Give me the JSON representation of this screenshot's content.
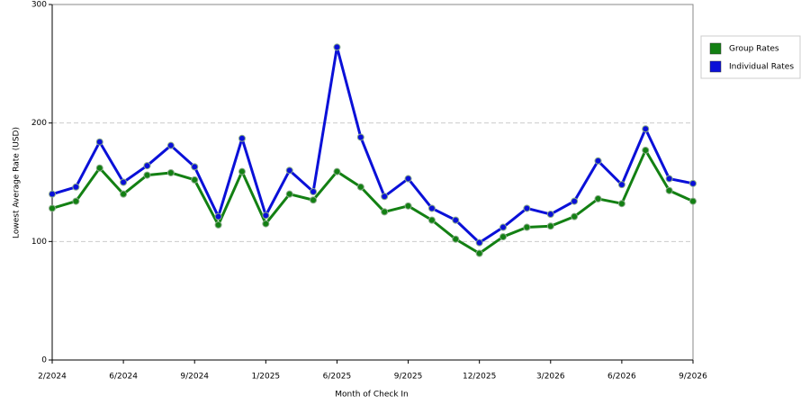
{
  "chart_data": {
    "type": "line",
    "x_label": "Month of Check In",
    "y_label": "Lowest Average Rate (USD)",
    "categories": [
      "2/2024",
      null,
      null,
      "6/2024",
      null,
      null,
      "9/2024",
      null,
      null,
      "1/2025",
      null,
      null,
      "6/2025",
      null,
      null,
      "9/2025",
      null,
      null,
      "12/2025",
      null,
      null,
      "3/2026",
      null,
      null,
      "6/2026",
      null,
      null,
      "9/2026"
    ],
    "series": [
      {
        "name": "Group Rates",
        "color": "#138013",
        "values": [
          128,
          134,
          162,
          140,
          156,
          158,
          152,
          114,
          159,
          115,
          140,
          135,
          159,
          146,
          125,
          130,
          118,
          102,
          90,
          104,
          112,
          113,
          121,
          136,
          132,
          177,
          143,
          134
        ]
      },
      {
        "name": "Individual Rates",
        "color": "#0a10d8",
        "values": [
          140,
          146,
          184,
          150,
          164,
          181,
          163,
          121,
          187,
          122,
          160,
          142,
          264,
          188,
          138,
          153,
          128,
          118,
          99,
          112,
          128,
          123,
          134,
          168,
          148,
          195,
          153,
          149
        ]
      }
    ],
    "ylim": [
      0,
      300
    ],
    "yticks": [
      0,
      100,
      200,
      300
    ],
    "grid": true,
    "legend": "right"
  }
}
